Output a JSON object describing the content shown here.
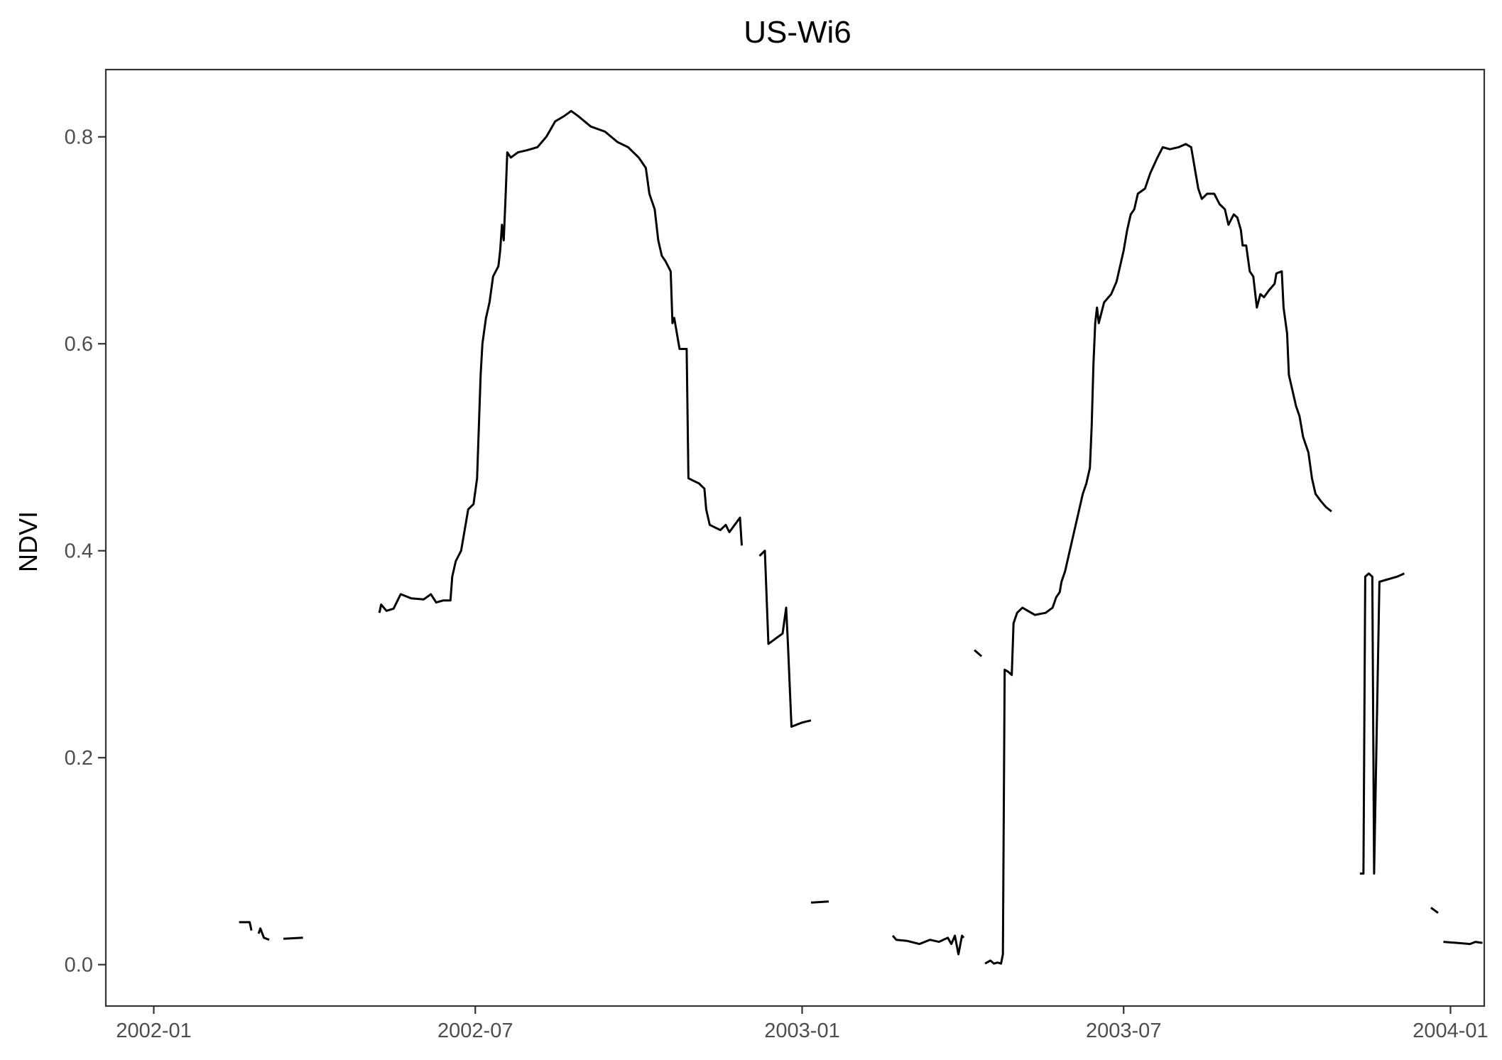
{
  "chart_data": {
    "type": "line",
    "title": "US-Wi6",
    "xlabel": "",
    "ylabel": "NDVI",
    "x_ticks": [
      "2002-01",
      "2002-07",
      "2003-01",
      "2003-07",
      "2004-01"
    ],
    "y_ticks": [
      "0.0",
      "0.2",
      "0.4",
      "0.6",
      "0.8"
    ],
    "xlim": [
      "2001-12-05",
      "2004-01-20"
    ],
    "ylim": [
      -0.04,
      0.865
    ],
    "grid": false,
    "legend": "none",
    "line_color": "#000000",
    "segments": [
      [
        [
          "2002-02-18",
          0.041
        ],
        [
          "2002-02-24",
          0.041
        ],
        [
          "2002-02-25",
          0.033
        ]
      ],
      [
        [
          "2002-03-01",
          0.03
        ],
        [
          "2002-03-02",
          0.035
        ],
        [
          "2002-03-04",
          0.026
        ],
        [
          "2002-03-07",
          0.024
        ]
      ],
      [
        [
          "2002-03-15",
          0.025
        ],
        [
          "2002-03-26",
          0.026
        ]
      ],
      [
        [
          "2002-05-08",
          0.34
        ],
        [
          "2002-05-09",
          0.348
        ],
        [
          "2002-05-12",
          0.342
        ],
        [
          "2002-05-16",
          0.344
        ],
        [
          "2002-05-20",
          0.358
        ],
        [
          "2002-05-26",
          0.354
        ],
        [
          "2002-06-02",
          0.353
        ],
        [
          "2002-06-06",
          0.358
        ],
        [
          "2002-06-09",
          0.35
        ],
        [
          "2002-06-13",
          0.352
        ],
        [
          "2002-06-17",
          0.352
        ],
        [
          "2002-06-18",
          0.375
        ],
        [
          "2002-06-20",
          0.39
        ],
        [
          "2002-06-23",
          0.4
        ],
        [
          "2002-06-25",
          0.42
        ],
        [
          "2002-06-27",
          0.44
        ],
        [
          "2002-06-30",
          0.445
        ],
        [
          "2002-07-02",
          0.47
        ],
        [
          "2002-07-03",
          0.52
        ],
        [
          "2002-07-04",
          0.57
        ],
        [
          "2002-07-05",
          0.6
        ],
        [
          "2002-07-07",
          0.625
        ],
        [
          "2002-07-09",
          0.64
        ],
        [
          "2002-07-11",
          0.665
        ],
        [
          "2002-07-14",
          0.675
        ],
        [
          "2002-07-15",
          0.69
        ],
        [
          "2002-07-16",
          0.715
        ],
        [
          "2002-07-17",
          0.7
        ],
        [
          "2002-07-18",
          0.74
        ],
        [
          "2002-07-19",
          0.785
        ],
        [
          "2002-07-21",
          0.78
        ],
        [
          "2002-07-25",
          0.785
        ],
        [
          "2002-07-30",
          0.787
        ],
        [
          "2002-08-05",
          0.79
        ],
        [
          "2002-08-10",
          0.8
        ],
        [
          "2002-08-15",
          0.815
        ],
        [
          "2002-08-20",
          0.82
        ],
        [
          "2002-08-24",
          0.825
        ],
        [
          "2002-08-28",
          0.82
        ],
        [
          "2002-09-04",
          0.81
        ],
        [
          "2002-09-12",
          0.805
        ],
        [
          "2002-09-19",
          0.795
        ],
        [
          "2002-09-25",
          0.79
        ],
        [
          "2002-10-01",
          0.78
        ],
        [
          "2002-10-05",
          0.77
        ],
        [
          "2002-10-07",
          0.745
        ],
        [
          "2002-10-10",
          0.73
        ],
        [
          "2002-10-12",
          0.7
        ],
        [
          "2002-10-14",
          0.685
        ],
        [
          "2002-10-16",
          0.68
        ],
        [
          "2002-10-19",
          0.67
        ],
        [
          "2002-10-20",
          0.62
        ],
        [
          "2002-10-21",
          0.625
        ],
        [
          "2002-10-24",
          0.595
        ],
        [
          "2002-10-28",
          0.595
        ],
        [
          "2002-10-29",
          0.47
        ],
        [
          "2002-11-04",
          0.465
        ],
        [
          "2002-11-07",
          0.46
        ],
        [
          "2002-11-08",
          0.44
        ],
        [
          "2002-11-10",
          0.425
        ],
        [
          "2002-11-16",
          0.42
        ],
        [
          "2002-11-19",
          0.425
        ],
        [
          "2002-11-21",
          0.418
        ],
        [
          "2002-11-24",
          0.425
        ],
        [
          "2002-11-27",
          0.432
        ],
        [
          "2002-11-28",
          0.405
        ]
      ],
      [
        [
          "2002-12-08",
          0.395
        ],
        [
          "2002-12-11",
          0.4
        ],
        [
          "2002-12-13",
          0.31
        ],
        [
          "2002-12-17",
          0.315
        ],
        [
          "2002-12-21",
          0.32
        ],
        [
          "2002-12-23",
          0.345
        ],
        [
          "2002-12-24",
          0.31
        ],
        [
          "2002-12-26",
          0.23
        ],
        [
          "2003-01-01",
          0.234
        ],
        [
          "2003-01-06",
          0.236
        ]
      ]
    ]
  }
}
